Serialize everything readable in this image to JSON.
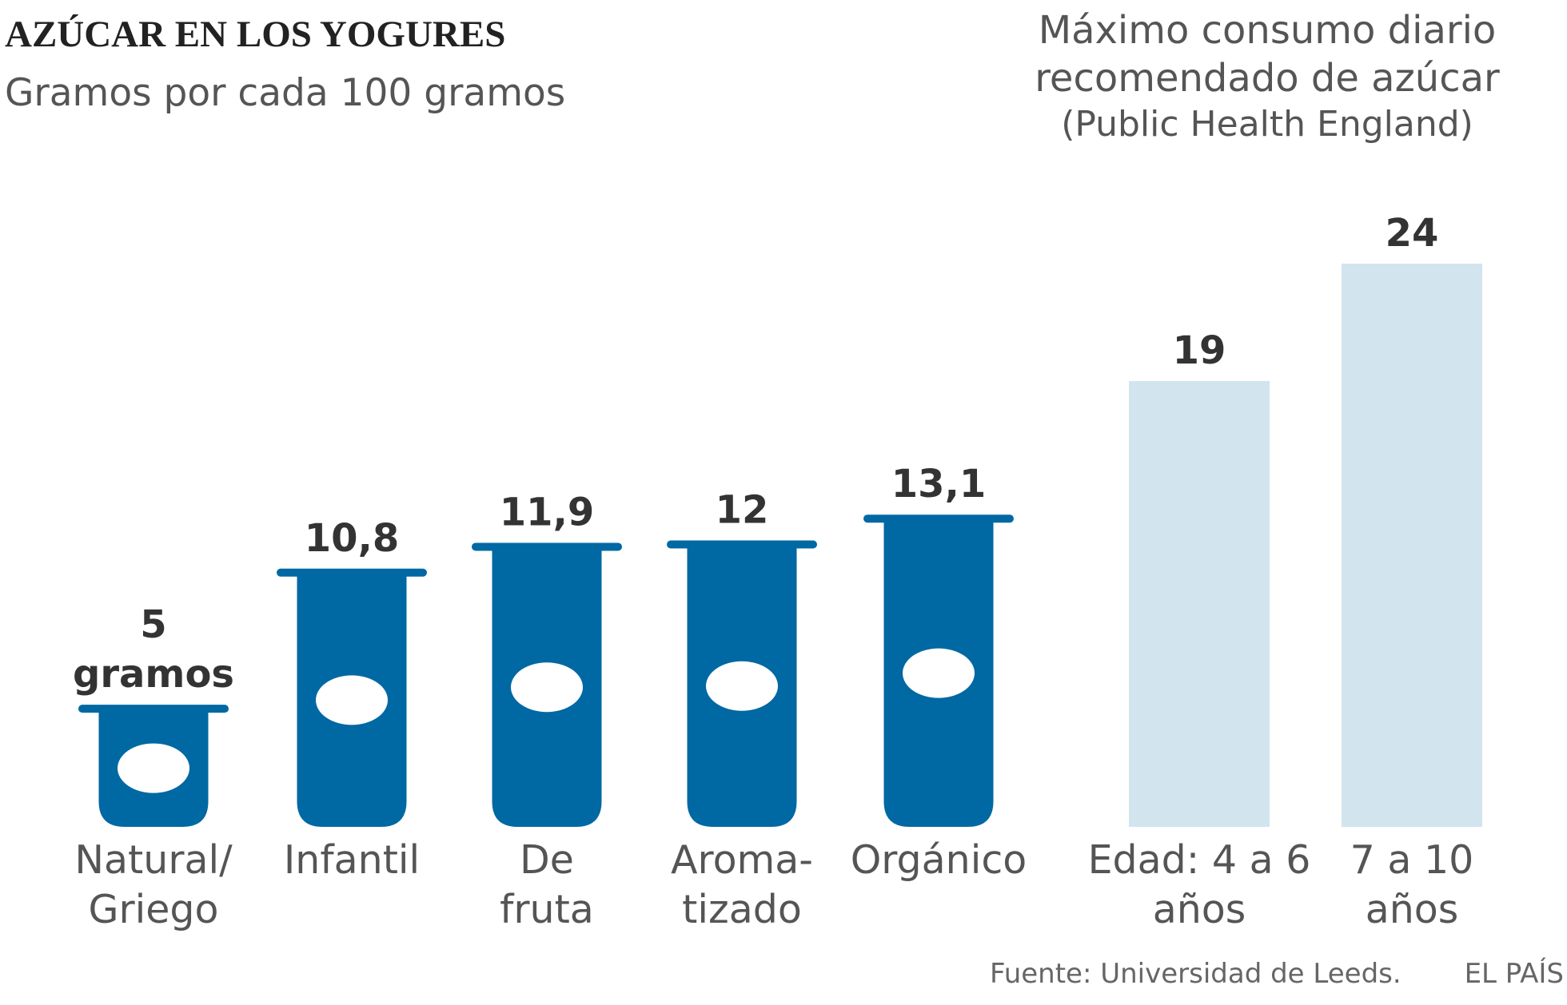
{
  "chart_data": [
    {
      "type": "yogurt",
      "title": "AZÚCAR EN LOS YOGURES",
      "subtitle": "Gramos por cada 100 gramos",
      "categories": [
        [
          "Natural/",
          "Griego"
        ],
        [
          "Infantil"
        ],
        [
          "De",
          "fruta"
        ],
        [
          "Aroma-",
          "tizado"
        ],
        [
          "Orgánico"
        ]
      ],
      "values": [
        5,
        10.8,
        11.9,
        12,
        13.1
      ],
      "value_labels": [
        [
          "5",
          "gramos"
        ],
        [
          "10,8"
        ],
        [
          "11,9"
        ],
        [
          "12"
        ],
        [
          "13,1"
        ]
      ],
      "color": "#0068a2",
      "ylim": [
        0,
        24
      ]
    },
    {
      "type": "bar",
      "title": [
        "Máximo consumo diario",
        "recomendado de azúcar",
        "(Public Health England)"
      ],
      "categories": [
        [
          "Edad: 4 a 6",
          "años"
        ],
        [
          "7 a 10",
          "años"
        ]
      ],
      "values": [
        19,
        24
      ],
      "value_labels": [
        [
          "19"
        ],
        [
          "24"
        ]
      ],
      "color": "#d2e4ee",
      "ylim": [
        0,
        24
      ]
    }
  ],
  "source": "Fuente: Universidad de Leeds.",
  "credit": "EL PAÍS"
}
